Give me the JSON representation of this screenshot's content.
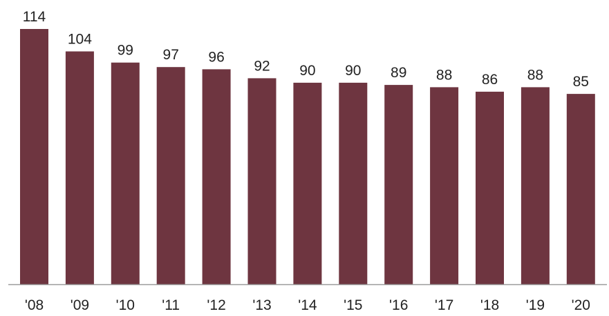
{
  "chart_data": {
    "type": "bar",
    "categories": [
      "'08",
      "'09",
      "'10",
      "'11",
      "'12",
      "'13",
      "'14",
      "'15",
      "'16",
      "'17",
      "'18",
      "'19",
      "'20"
    ],
    "values": [
      114,
      104,
      99,
      97,
      96,
      92,
      90,
      90,
      89,
      88,
      86,
      88,
      85
    ],
    "title": "",
    "xlabel": "",
    "ylabel": "",
    "ylim": [
      0,
      114
    ],
    "grid": false,
    "legend": "none",
    "data_labels": true,
    "colors": {
      "bar": "#6e3540",
      "axis": "#9a9a9a",
      "text": "#222222"
    }
  }
}
